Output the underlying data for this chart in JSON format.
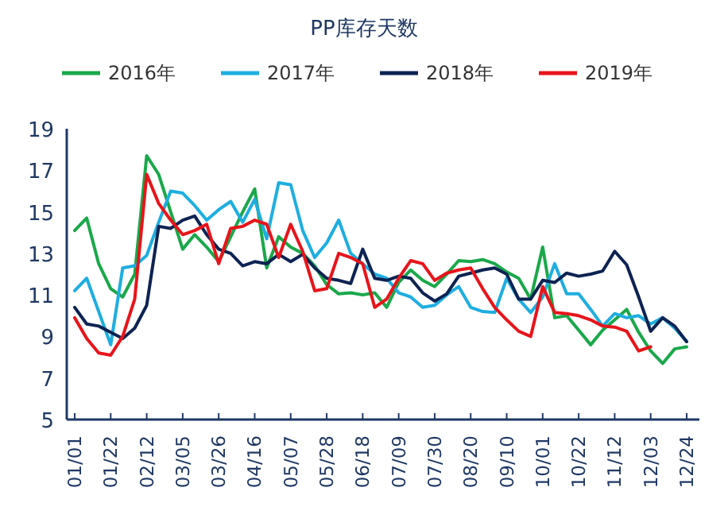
{
  "chart_data": {
    "type": "line",
    "title": "PP库存天数",
    "categories": [
      "01/01",
      null,
      null,
      "01/22",
      null,
      null,
      "02/12",
      null,
      null,
      "03/05",
      null,
      null,
      "03/26",
      null,
      null,
      "04/16",
      null,
      null,
      "05/07",
      null,
      null,
      "05/28",
      null,
      null,
      "06/18",
      null,
      null,
      "07/09",
      null,
      null,
      "07/30",
      null,
      null,
      "08/20",
      null,
      null,
      "09/10",
      null,
      null,
      "10/01",
      null,
      null,
      "10/22",
      null,
      null,
      "11/12",
      null,
      null,
      "12/03",
      null,
      null,
      "12/24"
    ],
    "series": [
      {
        "name": "2016年",
        "color": "#1aa84a",
        "values": [
          14.1,
          14.7,
          12.5,
          11.3,
          10.9,
          12.0,
          17.7,
          16.8,
          15.0,
          13.2,
          13.9,
          13.3,
          12.6,
          13.8,
          15.0,
          16.1,
          12.3,
          13.8,
          13.3,
          13.0,
          12.4,
          11.5,
          11.05,
          11.1,
          11.0,
          11.1,
          10.4,
          11.6,
          12.2,
          11.7,
          11.4,
          12.0,
          12.65,
          12.6,
          12.7,
          12.5,
          12.1,
          11.8,
          10.8,
          13.3,
          9.9,
          10.0,
          9.3,
          8.6,
          9.3,
          9.8,
          10.3,
          9.2,
          8.3,
          7.7,
          8.4,
          8.5
        ]
      },
      {
        "name": "2017年",
        "color": "#1eaee0",
        "values": [
          11.2,
          11.8,
          10.2,
          8.6,
          12.3,
          12.4,
          12.9,
          14.5,
          16.0,
          15.9,
          15.3,
          14.6,
          15.1,
          15.5,
          14.5,
          15.6,
          13.7,
          16.4,
          16.3,
          14.1,
          12.8,
          13.5,
          14.6,
          13.0,
          12.5,
          12.0,
          11.8,
          11.1,
          10.9,
          10.4,
          10.5,
          11.0,
          11.4,
          10.4,
          10.2,
          10.15,
          11.8,
          10.8,
          10.15,
          10.9,
          12.5,
          11.05,
          11.05,
          10.3,
          9.5,
          10.1,
          9.9,
          10.0,
          9.6,
          9.9,
          9.4,
          8.75
        ]
      },
      {
        "name": "2018年",
        "color": "#0d2352",
        "values": [
          10.4,
          9.6,
          9.5,
          9.2,
          8.9,
          9.4,
          10.5,
          14.3,
          14.2,
          14.6,
          14.8,
          13.9,
          13.2,
          13.0,
          12.4,
          12.6,
          12.5,
          12.95,
          12.6,
          12.95,
          12.3,
          11.8,
          11.7,
          11.55,
          13.2,
          11.8,
          11.7,
          11.9,
          11.8,
          11.1,
          10.7,
          11.05,
          11.9,
          12.05,
          12.2,
          12.3,
          12.0,
          10.8,
          10.8,
          11.7,
          11.6,
          12.05,
          11.9,
          12.0,
          12.15,
          13.1,
          12.45,
          10.9,
          9.25,
          9.9,
          9.5,
          8.75
        ]
      },
      {
        "name": "2019年",
        "color": "#e8141b",
        "values": [
          9.9,
          8.9,
          8.2,
          8.1,
          9.0,
          10.8,
          16.8,
          15.4,
          14.6,
          13.9,
          14.1,
          14.4,
          12.5,
          14.2,
          14.3,
          14.6,
          14.4,
          12.8,
          14.4,
          13.1,
          11.2,
          11.3,
          13.0,
          12.8,
          12.5,
          10.4,
          10.8,
          11.8,
          12.65,
          12.5,
          11.7,
          12.05,
          12.2,
          12.3,
          11.3,
          10.4,
          9.8,
          9.25,
          9.0,
          11.4,
          10.15,
          10.1,
          10.0,
          9.8,
          9.5,
          9.45,
          9.25,
          8.3,
          8.5,
          null,
          null,
          null
        ]
      }
    ],
    "ylim": [
      5,
      19
    ],
    "yticks": [
      5,
      7,
      9,
      11,
      13,
      15,
      17,
      19
    ],
    "legend": "top",
    "grid": false,
    "marker": "none",
    "line_style": "solid"
  }
}
